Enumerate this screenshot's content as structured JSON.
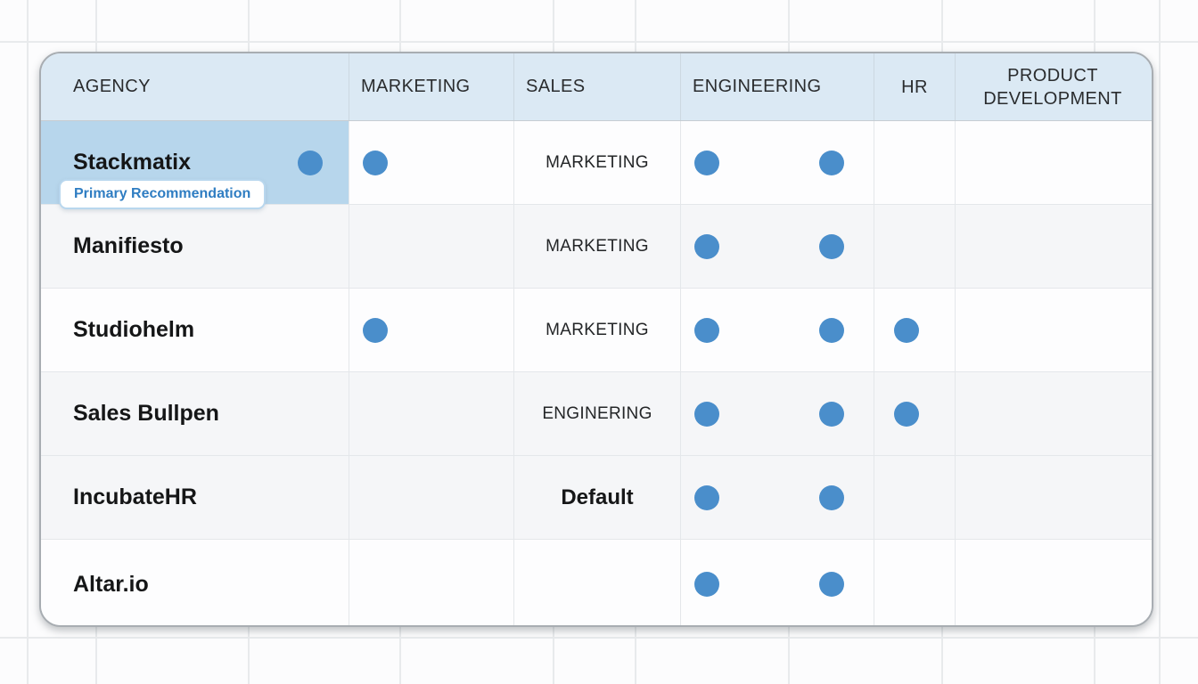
{
  "colors": {
    "canvas_bg": "#fcfcfd",
    "grid_line": "#e8eaec",
    "table_border": "#a8adb2",
    "header_bg": "#dbe9f4",
    "row_stripe": "#f5f6f8",
    "highlight_bg": "#b7d6ec",
    "dot_blue": "#4a8ecb",
    "badge_text": "#2f7dc2",
    "badge_border": "#b9d7ee",
    "divider": "#e4e7ea"
  },
  "badge": {
    "label": "Primary Recommendation"
  },
  "table": {
    "columns": [
      {
        "id": "agency",
        "label": "AGENCY"
      },
      {
        "id": "marketing",
        "label": "MARKETING"
      },
      {
        "id": "sales",
        "label": "SALES"
      },
      {
        "id": "engineering",
        "label": "ENGINEERING"
      },
      {
        "id": "hr",
        "label": "HR"
      },
      {
        "id": "product_development",
        "label": "PRODUCT DEVELOPMENT"
      }
    ],
    "rows": [
      {
        "agency": "Stackmatix",
        "agency_dot": true,
        "highlight": true,
        "shaded": false,
        "marketing_dot": true,
        "sales_text": "MARKETING",
        "sales_bold": false,
        "engineering_dots": 2,
        "hr_dot": false,
        "product_development": ""
      },
      {
        "agency": "Manifiesto",
        "agency_dot": false,
        "highlight": false,
        "shaded": true,
        "marketing_dot": false,
        "sales_text": "MARKETING",
        "sales_bold": false,
        "engineering_dots": 2,
        "hr_dot": false,
        "product_development": ""
      },
      {
        "agency": "Studiohelm",
        "agency_dot": false,
        "highlight": false,
        "shaded": false,
        "marketing_dot": true,
        "sales_text": "MARKETING",
        "sales_bold": false,
        "engineering_dots": 2,
        "hr_dot": true,
        "product_development": ""
      },
      {
        "agency": "Sales Bullpen",
        "agency_dot": false,
        "highlight": false,
        "shaded": true,
        "marketing_dot": false,
        "sales_text": "ENGINERING",
        "sales_bold": false,
        "engineering_dots": 2,
        "hr_dot": true,
        "product_development": ""
      },
      {
        "agency": "IncubateHR",
        "agency_dot": false,
        "highlight": false,
        "shaded": true,
        "marketing_dot": false,
        "sales_text": "Default",
        "sales_bold": true,
        "engineering_dots": 2,
        "hr_dot": false,
        "product_development": ""
      },
      {
        "agency": "Altar.io",
        "agency_dot": false,
        "highlight": false,
        "shaded": false,
        "marketing_dot": false,
        "sales_text": "",
        "sales_bold": false,
        "engineering_dots": 2,
        "hr_dot": false,
        "product_development": ""
      }
    ]
  }
}
